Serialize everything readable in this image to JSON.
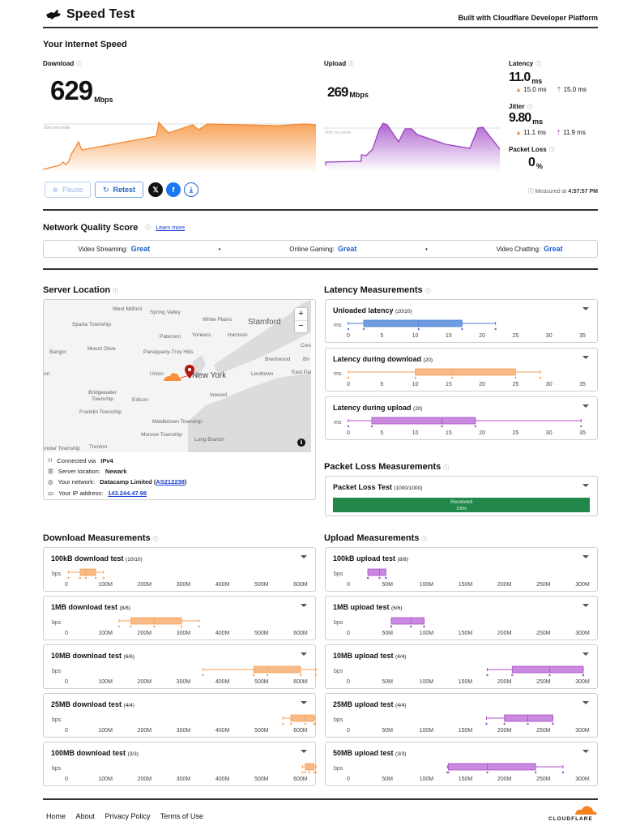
{
  "header": {
    "title": "Speed Test",
    "built_with": "Built with Cloudflare Developer Platform"
  },
  "speed": {
    "section_title": "Your Internet Speed",
    "download": {
      "label": "Download",
      "value": "629",
      "unit": "Mbps",
      "percentile_label": "90th percentile",
      "color": "#f6913a"
    },
    "upload": {
      "label": "Upload",
      "value": "269",
      "unit": "Mbps",
      "percentile_label": "90th percentile",
      "color": "#9b3fc2"
    },
    "latency": {
      "label": "Latency",
      "value": "11.0",
      "unit": "ms",
      "down": "15.0 ms",
      "up": "15.0 ms"
    },
    "jitter": {
      "label": "Jitter",
      "value": "9.80",
      "unit": "ms",
      "down": "11.1 ms",
      "up": "11.9 ms"
    },
    "packet_loss": {
      "label": "Packet Loss",
      "value": "0",
      "unit": "%"
    },
    "measured_at": "Measured at",
    "measured_time": "4:57:57 PM",
    "buttons": {
      "pause": "Pause",
      "retest": "Retest"
    }
  },
  "network_quality": {
    "title": "Network Quality Score",
    "learn_more": "Learn more",
    "items": [
      {
        "label": "Video Streaming:",
        "value": "Great"
      },
      {
        "label": "Online Gaming:",
        "value": "Great"
      },
      {
        "label": "Video Chatting:",
        "value": "Great"
      }
    ]
  },
  "server": {
    "title": "Server Location",
    "map_labels": [
      "West Milford",
      "Spring Valley",
      "White Plains",
      "Stamford",
      "Sparta Township",
      "Paterson",
      "Yonkers",
      "Harrison",
      "Bangor",
      "Mount Olive",
      "Parsippany-Troy Hills",
      "Cora",
      "Brentwood",
      "Union",
      "New York",
      "Levittown",
      "East Pat",
      "Bridgewater Township",
      "Edison",
      "Inwood",
      "Franklin Township",
      "Middletown Township",
      "Monroe Township",
      "Long Branch",
      "Trenton",
      "inster Township",
      "Bri",
      "on"
    ],
    "connected_via_label": "Connected via",
    "connected_via": "IPv4",
    "location_label": "Server location:",
    "location": "Newark",
    "network_label": "Your network:",
    "network": "Datacamp Limited",
    "asn": "AS212238",
    "ip_label": "Your IP address:",
    "ip": "143.244.47.98"
  },
  "latency_measurements": {
    "title": "Latency Measurements",
    "axis": [
      "0",
      "5",
      "10",
      "15",
      "20",
      "25",
      "30",
      "35"
    ],
    "unit": "ms",
    "tests": [
      {
        "title": "Unloaded latency",
        "count": "(20/20)",
        "color": "#5b8fd9",
        "min": 0,
        "q1": 2.3,
        "median": 10.5,
        "q3": 17,
        "max": 22
      },
      {
        "title": "Latency during download",
        "count": "(20)",
        "color": "#f6a968",
        "min": 0,
        "q1": 10,
        "median": 15.5,
        "q3": 25,
        "max": 28.7
      },
      {
        "title": "Latency during upload",
        "count": "(20)",
        "color": "#c07ad9",
        "min": 0,
        "q1": 3.5,
        "median": 14,
        "q3": 19,
        "max": 34.8
      }
    ]
  },
  "packet_loss_measurements": {
    "title": "Packet Loss Measurements",
    "test_title": "Packet Loss Test",
    "count": "(1000/1000)",
    "bar_label": "Received",
    "bar_pct": "100%"
  },
  "download_measurements": {
    "title": "Download Measurements",
    "unit": "bps",
    "axis": [
      "0",
      "100M",
      "200M",
      "300M",
      "400M",
      "500M",
      "600M"
    ],
    "tests": [
      {
        "title": "100kB download test",
        "count": "(10/10)",
        "min": 5,
        "q1": 35,
        "median": 50,
        "q3": 75,
        "max": 95
      },
      {
        "title": "1MB download test",
        "count": "(8/8)",
        "min": 135,
        "q1": 165,
        "median": 225,
        "q3": 295,
        "max": 340
      },
      {
        "title": "10MB download test",
        "count": "(6/6)",
        "min": 350,
        "q1": 480,
        "median": 515,
        "q3": 600,
        "max": 640
      },
      {
        "title": "25MB download test",
        "count": "(4/4)",
        "min": 555,
        "q1": 575,
        "median": 612,
        "q3": 635,
        "max": 637
      },
      {
        "title": "100MB download test",
        "count": "(3/3)",
        "min": 605,
        "q1": 612,
        "median": 622,
        "q3": 635,
        "max": 640
      }
    ]
  },
  "upload_measurements": {
    "title": "Upload Measurements",
    "unit": "bps",
    "axis": [
      "0",
      "50M",
      "100M",
      "150M",
      "200M",
      "250M",
      "300M"
    ],
    "tests": [
      {
        "title": "100kB upload test",
        "count": "(8/8)",
        "min": 25,
        "q1": 25,
        "median": 40,
        "q3": 48,
        "max": 48
      },
      {
        "title": "1MB upload test",
        "count": "(6/6)",
        "min": 55,
        "q1": 55,
        "median": 80,
        "q3": 97,
        "max": 97
      },
      {
        "title": "10MB upload test",
        "count": "(4/4)",
        "min": 178,
        "q1": 210,
        "median": 258,
        "q3": 301,
        "max": 301
      },
      {
        "title": "25MB upload test",
        "count": "(4/4)",
        "min": 177,
        "q1": 200,
        "median": 230,
        "q3": 262,
        "max": 262
      },
      {
        "title": "50MB upload test",
        "count": "(3/3)",
        "min": 127,
        "q1": 128,
        "median": 178,
        "q3": 240,
        "max": 275
      }
    ]
  },
  "footer": {
    "links": [
      "Home",
      "About",
      "Privacy Policy",
      "Terms of Use"
    ],
    "brand": "CLOUDFLARE"
  }
}
